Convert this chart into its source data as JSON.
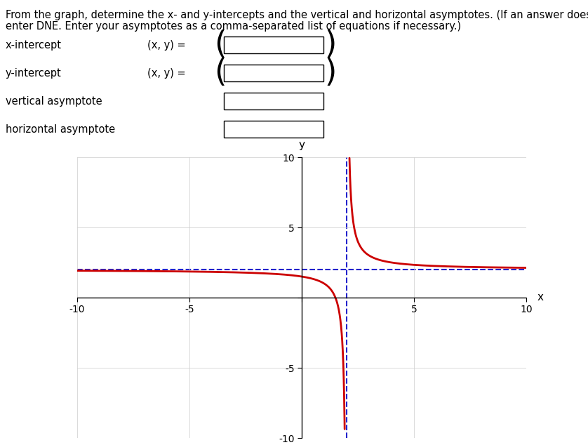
{
  "title_line1": "From the graph, determine the x- and y-intercepts and the vertical and horizontal asymptotes. (If an answer does not exist,",
  "title_line2": "enter DNE. Enter your asymptotes as a comma-separated list of equations if necessary.)",
  "labels": {
    "x_intercept_label": "x-intercept",
    "y_intercept_label": "y-intercept",
    "vertical_asymptote_label": "vertical asymptote",
    "horizontal_asymptote_label": "horizontal asymptote",
    "xy_eq": "(x, y) ="
  },
  "graph": {
    "xlim": [
      -10,
      10
    ],
    "ylim": [
      -10,
      10
    ],
    "xticks": [
      -10,
      -5,
      5,
      10
    ],
    "yticks": [
      -10,
      -5,
      5,
      10
    ],
    "xlabel": "x",
    "ylabel": "y",
    "grid_color": "#cccccc",
    "axis_color": "#000000",
    "curve_color": "#cc0000",
    "va_color": "#2222cc",
    "ha_color": "#2222cc",
    "va_x": 2,
    "ha_y": 2,
    "curve_linewidth": 2.0,
    "asymptote_linewidth": 1.5,
    "asymptote_linestyle": "--"
  },
  "background_color": "#ffffff",
  "text_color": "#000000",
  "font_size": 10.5,
  "title_font_size": 10.5
}
